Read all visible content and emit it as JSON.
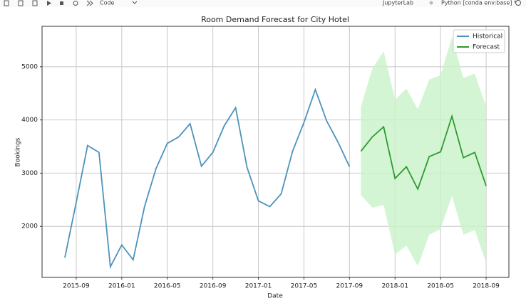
{
  "toolbar": {
    "cell_type": "Code",
    "app": "JupyterLab",
    "kernel": "Python [conda env:base] *"
  },
  "chart_data": {
    "type": "line",
    "title": "Room Demand Forecast for City Hotel",
    "x_label": "Date",
    "y_label": "Bookings",
    "xlim": [
      "2015-06",
      "2018-11"
    ],
    "xticks": [
      "2015-09",
      "2016-01",
      "2016-05",
      "2016-09",
      "2017-01",
      "2017-05",
      "2017-09",
      "2018-01",
      "2018-05",
      "2018-09"
    ],
    "ylim": [
      1040,
      5760
    ],
    "yticks": [
      2000,
      3000,
      4000,
      5000
    ],
    "grid": true,
    "legend": "upper right",
    "series": [
      {
        "name": "Historical",
        "color": "#4c93bb",
        "x": [
          "2015-08",
          "2015-09",
          "2015-10",
          "2015-11",
          "2015-12",
          "2016-01",
          "2016-02",
          "2016-03",
          "2016-04",
          "2016-05",
          "2016-06",
          "2016-07",
          "2016-08",
          "2016-09",
          "2016-10",
          "2016-11",
          "2016-12",
          "2017-01",
          "2017-02",
          "2017-03",
          "2017-04",
          "2017-05",
          "2017-06",
          "2017-07",
          "2017-08",
          "2017-09"
        ],
        "values": [
          1410,
          2450,
          3520,
          3390,
          1240,
          1650,
          1370,
          2370,
          3080,
          3560,
          3680,
          3930,
          3130,
          3390,
          3890,
          4230,
          3110,
          2480,
          2370,
          2610,
          3410,
          3950,
          4570,
          3980,
          3580,
          3120
        ]
      },
      {
        "name": "Forecast",
        "color": "#2e9a2e",
        "band_color": "#c9f3c9",
        "x": [
          "2017-10",
          "2017-11",
          "2017-12",
          "2018-01",
          "2018-02",
          "2018-03",
          "2018-04",
          "2018-05",
          "2018-06",
          "2018-07",
          "2018-08",
          "2018-09"
        ],
        "values": [
          3410,
          3680,
          3870,
          2900,
          3120,
          2700,
          3310,
          3400,
          4070,
          3290,
          3390,
          2760
        ],
        "upper": [
          4250,
          4960,
          5290,
          4380,
          4590,
          4200,
          4760,
          4840,
          5560,
          4790,
          4870,
          4250
        ],
        "lower": [
          2590,
          2350,
          2400,
          1470,
          1640,
          1250,
          1840,
          1950,
          2570,
          1840,
          1930,
          1310
        ]
      }
    ]
  }
}
